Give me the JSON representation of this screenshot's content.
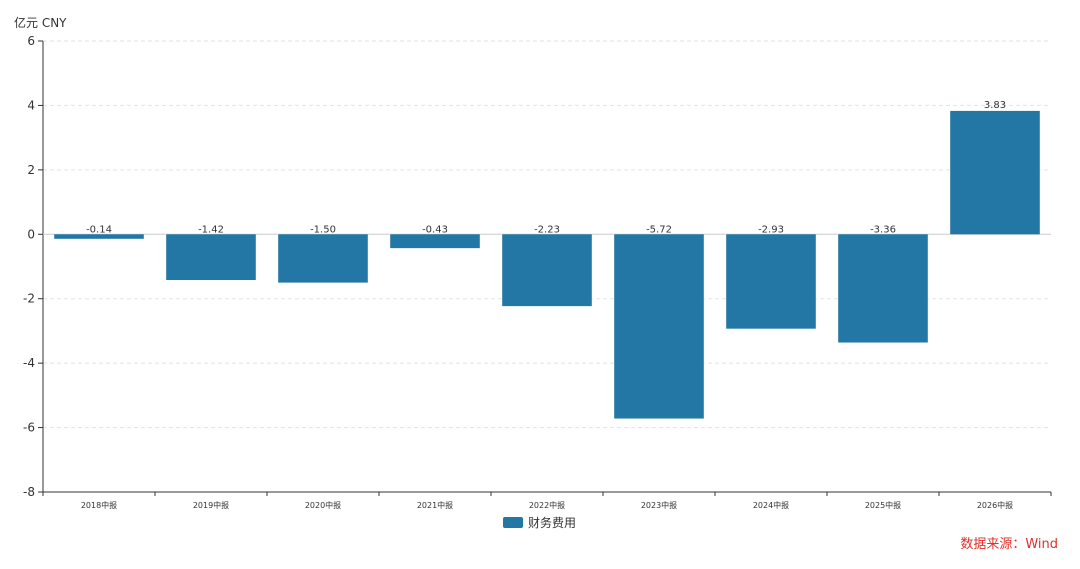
{
  "chart_data": {
    "type": "bar",
    "unit_label": "亿元  CNY",
    "categories": [
      "2018中报",
      "2019中报",
      "2020中报",
      "2021中报",
      "2022中报",
      "2023中报",
      "2024中报",
      "2025中报",
      "2026中报"
    ],
    "series": [
      {
        "name": "财务费用",
        "values": [
          -0.14,
          -1.42,
          -1.5,
          -0.43,
          -2.23,
          -5.72,
          -2.93,
          -3.36,
          3.83
        ],
        "value_labels": [
          "-0.14",
          "-1.42",
          "-1.50",
          "-0.43",
          "-2.23",
          "-5.72",
          "-2.93",
          "-3.36",
          "3.83"
        ],
        "color": "#2377a4"
      }
    ],
    "ylim": [
      -8,
      6
    ],
    "yticks": [
      6,
      4,
      2,
      0,
      -2,
      -4,
      -6,
      -8
    ],
    "grid": true,
    "legend_position": "bottom-center"
  },
  "source": {
    "text": "数据来源：Wind",
    "color": "#e0302c"
  }
}
